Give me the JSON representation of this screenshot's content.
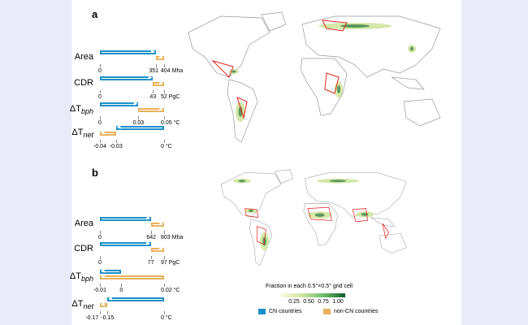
{
  "panels": [
    {
      "label": "a",
      "rows": [
        {
          "name": "Area",
          "sub": "",
          "blue": [
            0,
            351
          ],
          "orange": [
            351,
            404
          ],
          "dir": "right",
          "ticks": [
            "0",
            "351",
            "404"
          ],
          "tickvals": [
            0,
            351,
            404
          ],
          "unit": "Mha",
          "range": [
            0,
            404
          ]
        },
        {
          "name": "CDR",
          "sub": "",
          "blue": [
            0,
            43
          ],
          "orange": [
            43,
            52
          ],
          "dir": "right",
          "ticks": [
            "0",
            "43",
            "52"
          ],
          "tickvals": [
            0,
            43,
            52
          ],
          "unit": "PgC",
          "range": [
            0,
            52
          ]
        },
        {
          "name": "ΔT",
          "sub": "bph",
          "blue": [
            0,
            0.03
          ],
          "orange": [
            0.03,
            0.05
          ],
          "dir": "right",
          "ticks": [
            "0",
            "0.03",
            "0.05"
          ],
          "tickvals": [
            0,
            0.03,
            0.05
          ],
          "unit": "°C",
          "range": [
            0,
            0.05
          ]
        },
        {
          "name": "ΔT",
          "sub": "net",
          "blue": [
            -0.03,
            0
          ],
          "orange": [
            -0.04,
            -0.03
          ],
          "dir": "left",
          "ticks": [
            "-0.04",
            "-0.03",
            "0"
          ],
          "tickvals": [
            -0.04,
            -0.03,
            0
          ],
          "unit": "°C",
          "range": [
            -0.04,
            0
          ]
        }
      ]
    },
    {
      "label": "b",
      "rows": [
        {
          "name": "Area",
          "sub": "",
          "blue": [
            0,
            642
          ],
          "orange": [
            642,
            803
          ],
          "dir": "right",
          "ticks": [
            "0",
            "642",
            "803"
          ],
          "tickvals": [
            0,
            642,
            803
          ],
          "unit": "Mha",
          "range": [
            0,
            803
          ]
        },
        {
          "name": "CDR",
          "sub": "",
          "blue": [
            0,
            77
          ],
          "orange": [
            77,
            97
          ],
          "dir": "right",
          "ticks": [
            "0",
            "77",
            "97"
          ],
          "tickvals": [
            0,
            77,
            97
          ],
          "unit": "PgC",
          "range": [
            0,
            97
          ]
        },
        {
          "name": "ΔT",
          "sub": "bph",
          "blue": [
            -0.01,
            0
          ],
          "orange": [
            -0.01,
            0.02
          ],
          "dir": "left",
          "ticks": [
            "-0.01",
            "0",
            "0.02"
          ],
          "tickvals": [
            -0.01,
            0,
            0.02
          ],
          "unit": "°C",
          "range": [
            -0.01,
            0.02
          ]
        },
        {
          "name": "ΔT",
          "sub": "net",
          "blue": [
            -0.15,
            0
          ],
          "orange": [
            -0.17,
            -0.15
          ],
          "dir": "left",
          "ticks": [
            "-0.17",
            "-0.15",
            "0"
          ],
          "tickvals": [
            -0.17,
            -0.15,
            0
          ],
          "unit": "°C",
          "range": [
            -0.17,
            0
          ]
        }
      ]
    }
  ],
  "legend": {
    "title": "Fraction in each 0.5°×0.5° grid cell",
    "ticks": [
      "0.25",
      "0.50",
      "0.75",
      "1.00"
    ],
    "cn": "CN countries",
    "noncn": "non-CN countries"
  },
  "colors": {
    "cn": "#1b8fc9",
    "noncn": "#e9b15a",
    "border": "#e0241b",
    "green_low": "#f4f8c8",
    "green_high": "#0b5e2a"
  }
}
